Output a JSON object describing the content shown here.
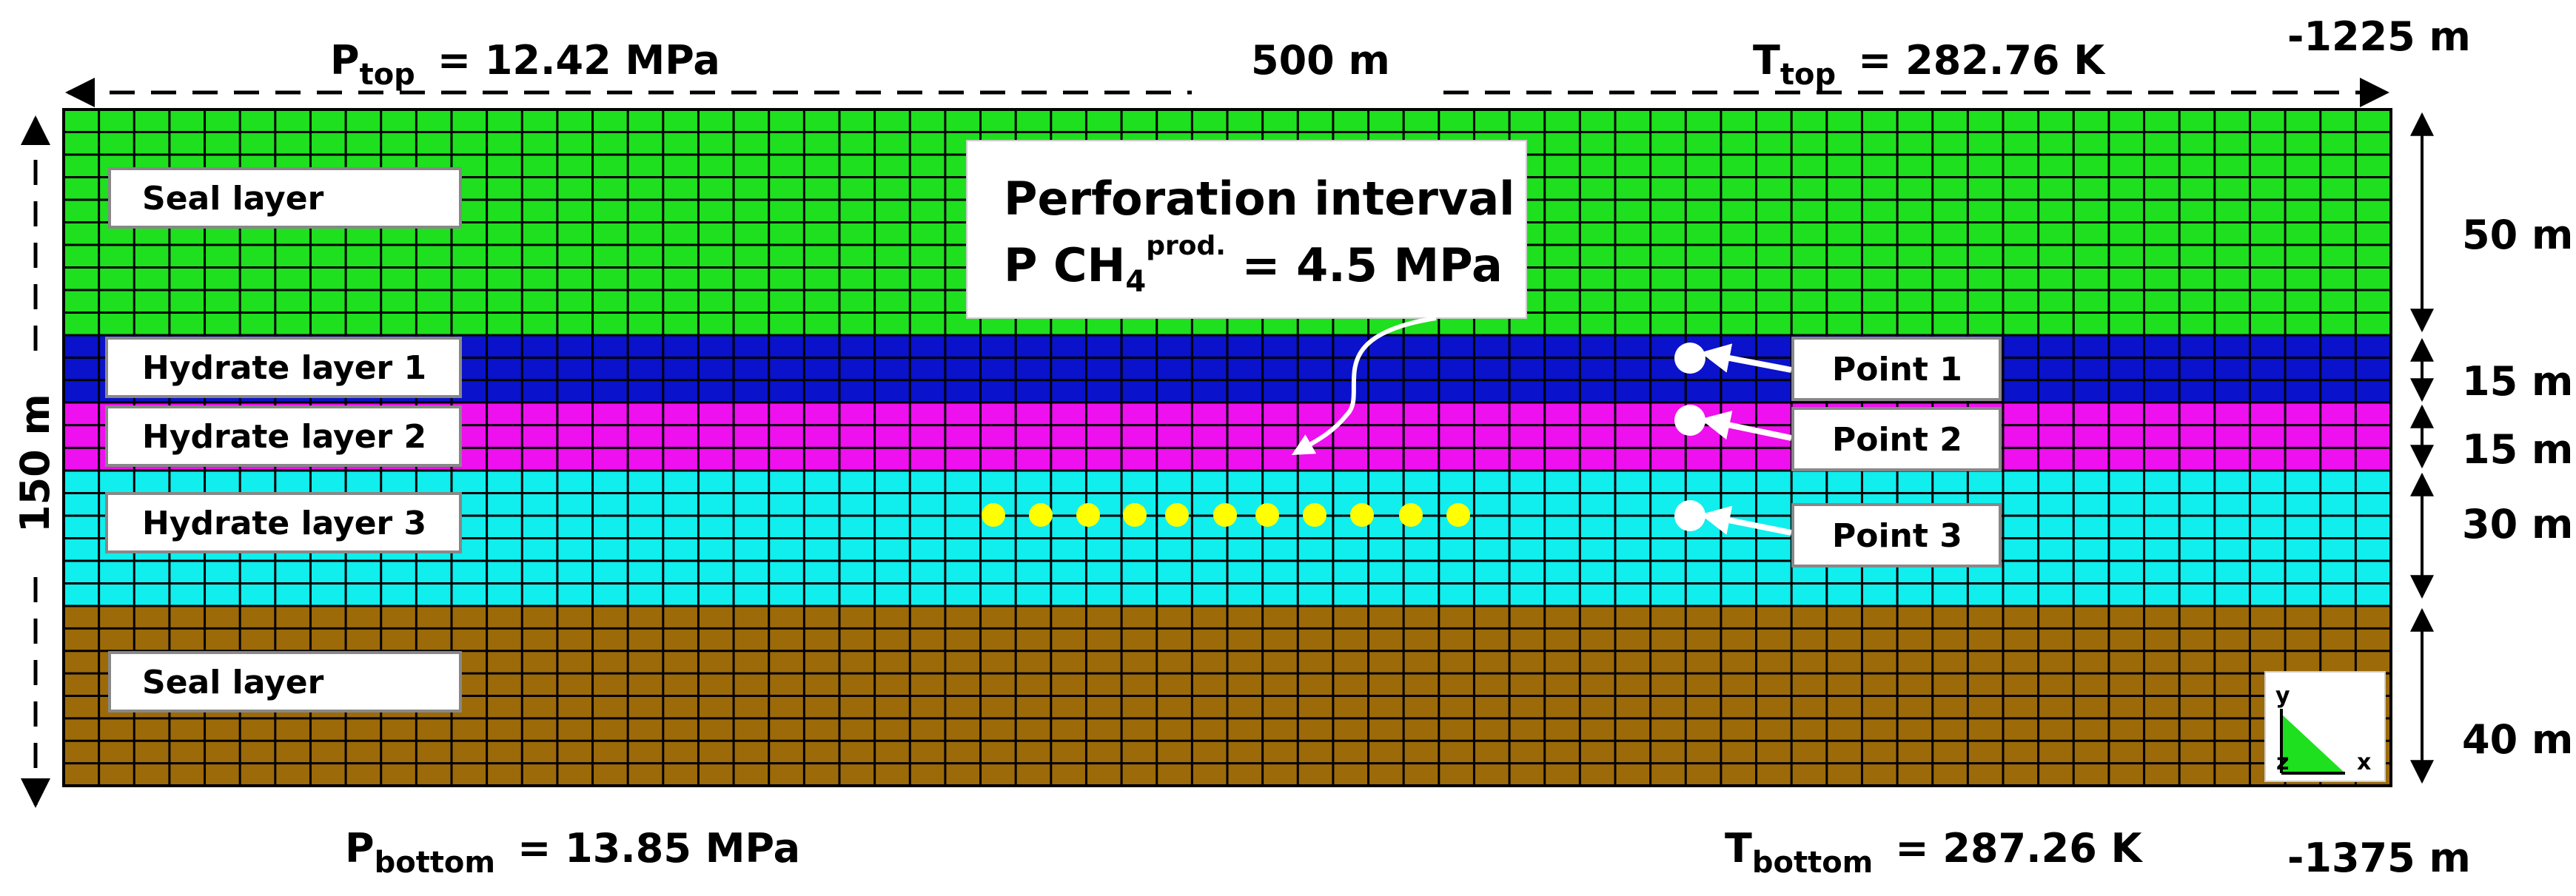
{
  "colors": {
    "seal_top": "#1ee01e",
    "hydrate_1": "#0a12cc",
    "hydrate_2": "#ee10ee",
    "hydrate_3": "#10eeee",
    "seal_bottom": "#9c6a08",
    "well_points": "#ffff00",
    "observation_points": "#ffffff"
  },
  "top": {
    "p_label_main": "P",
    "p_label_sub": "top",
    "p_value": "= 12.42  MPa",
    "width_label": "500 m",
    "t_label_main": "T",
    "t_label_sub": "top",
    "t_value": "= 282.76 K",
    "elevation": "-1225 m"
  },
  "bottom": {
    "p_label_main": "P",
    "p_label_sub": "bottom",
    "p_value": "= 13.85 MPa",
    "t_label_main": "T",
    "t_label_sub": "bottom",
    "t_value": "= 287.26 K",
    "elevation": "-1375 m"
  },
  "left": {
    "height_label": "150 m"
  },
  "layers": [
    {
      "name": "Seal layer",
      "thickness": "50 m"
    },
    {
      "name": "Hydrate layer 1",
      "thickness": "15 m"
    },
    {
      "name": "Hydrate layer 2",
      "thickness": "15 m"
    },
    {
      "name": "Hydrate layer 3",
      "thickness": "30 m"
    },
    {
      "name": "Seal layer",
      "thickness": "40 m"
    }
  ],
  "callout": {
    "line1": "Perforation interval",
    "line2_main": "P CH",
    "line2_sub": "4",
    "line2_sup": "prod.",
    "line2_value": " = 4.5 MPa"
  },
  "points": [
    {
      "label": "Point 1"
    },
    {
      "label": "Point 2"
    },
    {
      "label": "Point 3"
    }
  ],
  "axes_icon": {
    "y": "y",
    "x": "x",
    "z": "z"
  }
}
